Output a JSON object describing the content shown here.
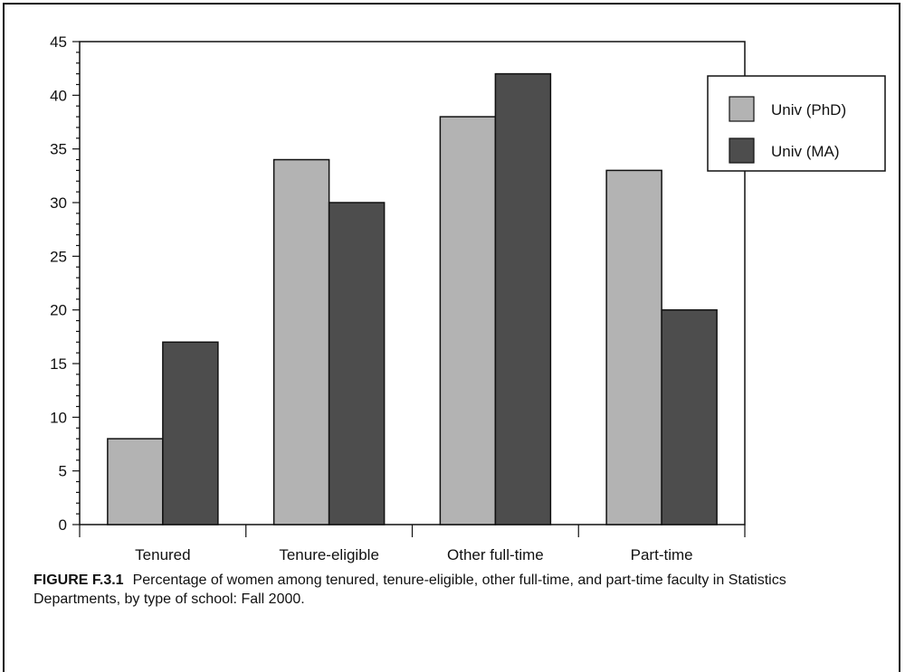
{
  "chart_data": {
    "type": "bar",
    "categories": [
      "Tenured",
      "Tenure-eligible",
      "Other full-time",
      "Part-time"
    ],
    "series": [
      {
        "name": "Univ (PhD)",
        "values": [
          8,
          34,
          38,
          33
        ],
        "color": "#b3b3b3"
      },
      {
        "name": "Univ (MA)",
        "values": [
          17,
          30,
          42,
          20
        ],
        "color": "#4d4d4d"
      }
    ],
    "ylim": [
      0,
      45
    ],
    "yticks": [
      0,
      5,
      10,
      15,
      20,
      25,
      30,
      35,
      40,
      45
    ],
    "xlabel": "",
    "ylabel": "",
    "legend_position": "top-right",
    "grid": false
  },
  "caption": {
    "figure_id": "FIGURE F.3.1",
    "text": "Percentage of women among tenured, tenure-eligible, other full-time, and part-time faculty in Statistics Departments, by type of school: Fall 2000."
  }
}
